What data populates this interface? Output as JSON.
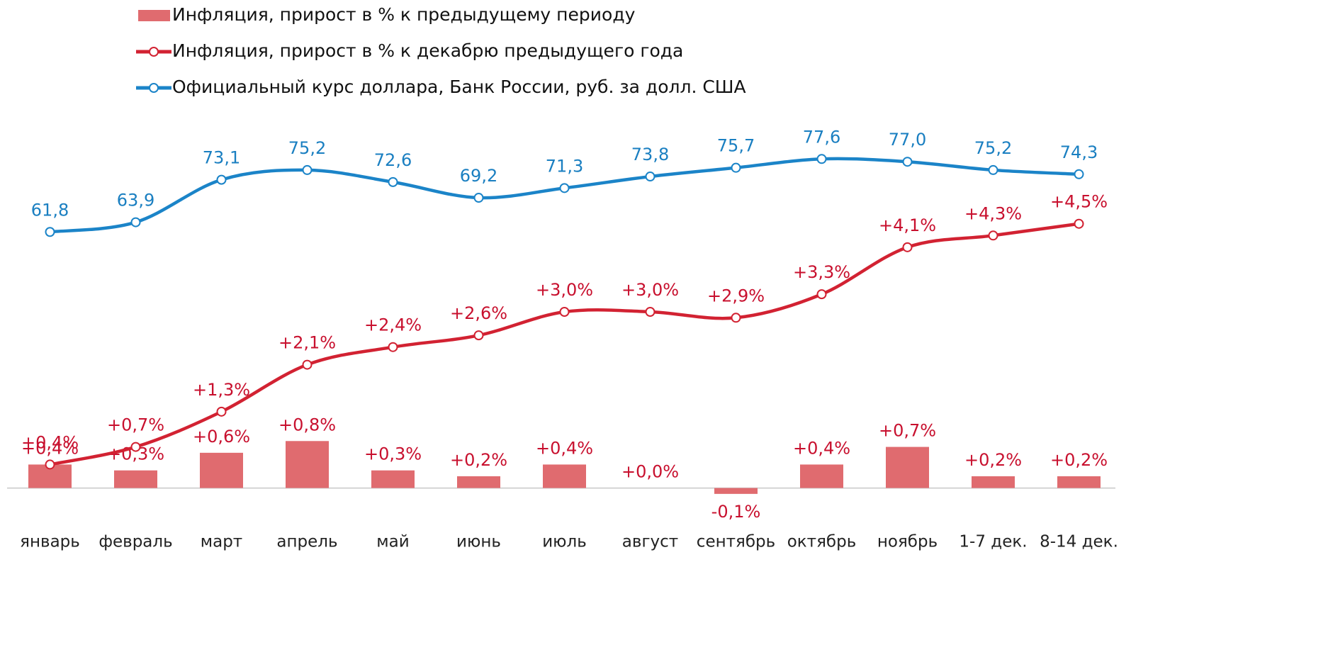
{
  "chart_data": {
    "type": "bar",
    "categories": [
      "январь",
      "февраль",
      "март",
      "апрель",
      "май",
      "июнь",
      "июль",
      "август",
      "сентябрь",
      "октябрь",
      "ноябрь",
      "1-7 дек.",
      "8-14 дек."
    ],
    "series": [
      {
        "name": "Инфляция, прирост в % к предыдущему периоду",
        "type": "bar",
        "color": "#e06b6f",
        "label_color": "#c8102e",
        "values": [
          0.4,
          0.3,
          0.6,
          0.8,
          0.3,
          0.2,
          0.4,
          0.0,
          -0.1,
          0.4,
          0.7,
          0.2,
          0.2
        ],
        "value_labels": [
          "+0,4%",
          "+0,3%",
          "+0,6%",
          "+0,8%",
          "+0,3%",
          "+0,2%",
          "+0,4%",
          "+0,0%",
          "-0,1%",
          "+0,4%",
          "+0,7%",
          "+0,2%",
          "+0,2%"
        ]
      },
      {
        "name": "Инфляция, прирост в % к декабрю предыдущего года",
        "type": "line",
        "color": "#d22232",
        "label_color": "#c8102e",
        "values": [
          0.4,
          0.7,
          1.3,
          2.1,
          2.4,
          2.6,
          3.0,
          3.0,
          2.9,
          3.3,
          4.1,
          4.3,
          4.5
        ],
        "value_labels": [
          "+0,4%",
          "+0,7%",
          "+1,3%",
          "+2,1%",
          "+2,4%",
          "+2,6%",
          "+3,0%",
          "+3,0%",
          "+2,9%",
          "+3,3%",
          "+4,1%",
          "+4,3%",
          "+4,5%"
        ]
      },
      {
        "name": "Официальный курс доллара, Банк России, руб. за долл. США",
        "type": "line",
        "axis": "y2",
        "color": "#1b84c8",
        "label_color": "#1a7fc1",
        "values": [
          61.8,
          63.9,
          73.1,
          75.2,
          72.6,
          69.2,
          71.3,
          73.8,
          75.7,
          77.6,
          77.0,
          75.2,
          74.3
        ],
        "value_labels": [
          "61,8",
          "63,9",
          "73,1",
          "75,2",
          "72,6",
          "69,2",
          "71,3",
          "73,8",
          "75,7",
          "77,6",
          "77,0",
          "75,2",
          "74,3"
        ]
      }
    ],
    "ylim": [
      -0.5,
      6.5
    ],
    "y2lim": [
      0,
      89
    ]
  }
}
